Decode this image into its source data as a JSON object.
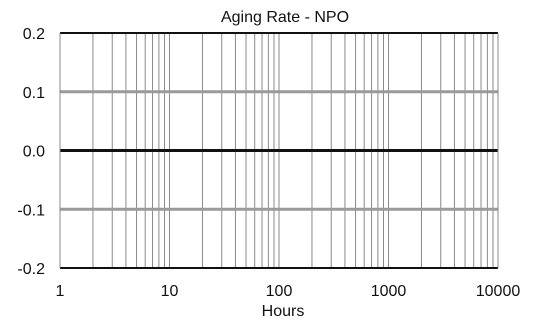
{
  "chart_data": {
    "type": "line",
    "title": "Aging Rate - NPO",
    "xlabel": "Hours",
    "ylabel": "",
    "x_scale": "log",
    "xlim": [
      1,
      10000
    ],
    "ylim": [
      -0.2,
      0.2
    ],
    "x_ticks": [
      "1",
      "10",
      "100",
      "1000",
      "10000"
    ],
    "y_ticks": [
      "0.2",
      "0.1",
      "0.0",
      "-0.1",
      "-0.2"
    ],
    "grid": true,
    "series": [
      {
        "x": [
          1,
          10000
        ],
        "y": [
          0.0,
          0.0
        ]
      }
    ],
    "colors": {
      "background": "#ffffff",
      "grid_minor": "#8a8a8a",
      "grid_major": "#9a9a9a",
      "frame": "#111111",
      "series": "#111111",
      "text": "#111111"
    }
  }
}
